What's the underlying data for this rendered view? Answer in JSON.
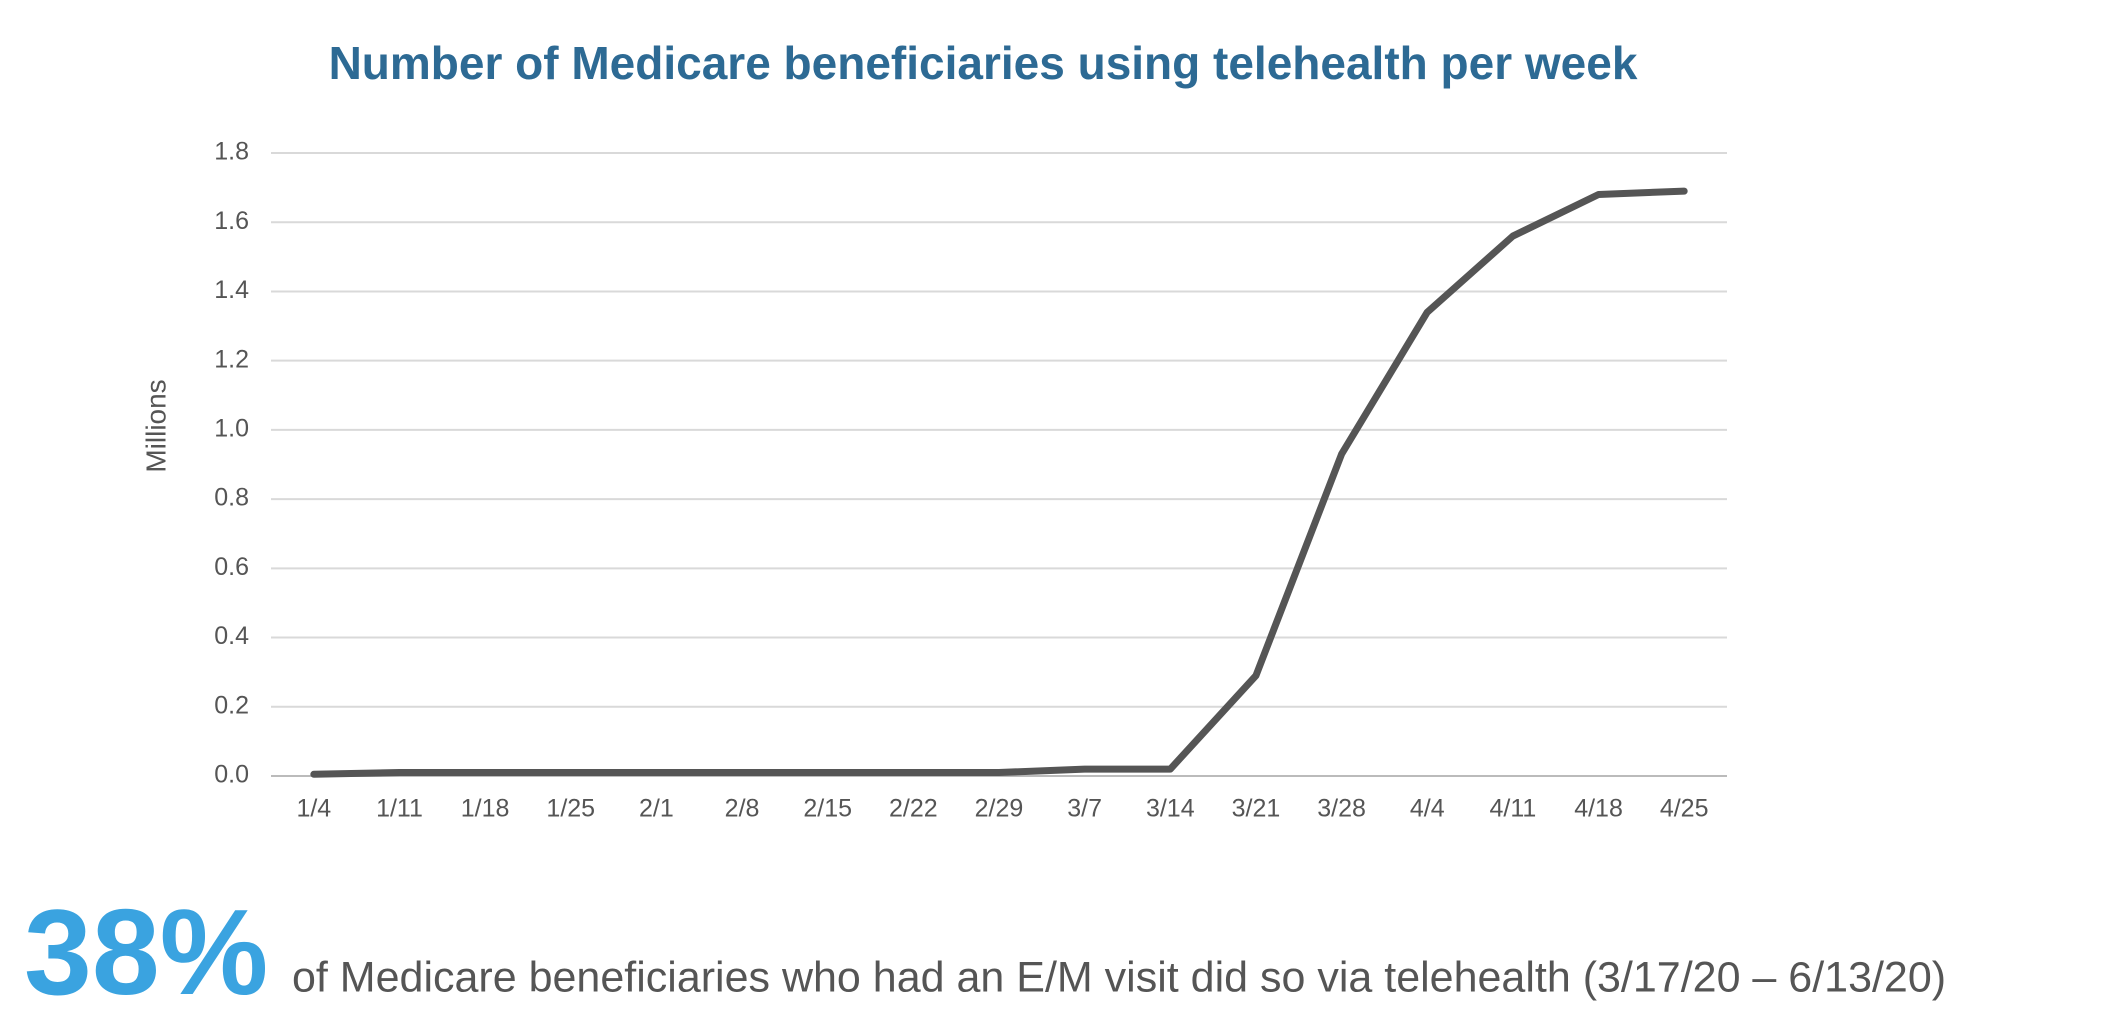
{
  "chart_data": {
    "type": "line",
    "title": "Number of Medicare beneficiaries using telehealth per week",
    "y_label": "Millions",
    "categories": [
      "1/4",
      "1/11",
      "1/18",
      "1/25",
      "2/1",
      "2/8",
      "2/15",
      "2/22",
      "2/29",
      "3/7",
      "3/14",
      "3/21",
      "3/28",
      "4/4",
      "4/11",
      "4/18",
      "4/25"
    ],
    "series": [
      {
        "color": "#555555",
        "values": [
          0.005,
          0.01,
          0.01,
          0.01,
          0.01,
          0.01,
          0.01,
          0.01,
          0.01,
          0.02,
          0.02,
          0.29,
          0.93,
          1.34,
          1.56,
          1.68,
          1.69
        ]
      }
    ],
    "ylim": [
      0,
      1.8
    ],
    "yticks": [
      {
        "value": 0,
        "label": "0.0"
      },
      0.2,
      0.4,
      0.6,
      0.8,
      {
        "value": 1,
        "label": "1.0"
      },
      1.2,
      1.4,
      1.6,
      1.8
    ],
    "grid": true
  },
  "callout": {
    "figure": "38%",
    "text": "of Medicare beneficiaries who had an E/M visit did so via telehealth (3/17/20 – 6/13/20)"
  }
}
